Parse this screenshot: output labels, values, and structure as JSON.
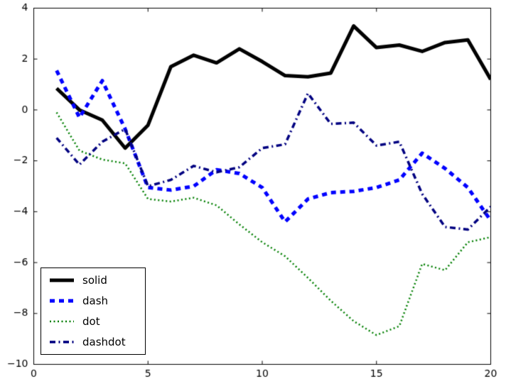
{
  "figure": {
    "background": "#ffffff",
    "frame_color": "#000000"
  },
  "chart_data": {
    "type": "line",
    "title": "",
    "xlabel": "",
    "ylabel": "",
    "grid": false,
    "xlim": [
      0,
      20
    ],
    "ylim": [
      -10,
      4
    ],
    "xticks": [
      0,
      5,
      10,
      15,
      20
    ],
    "yticks": [
      4,
      2,
      0,
      -2,
      -4,
      -6,
      -8,
      -10
    ],
    "xtick_labels": [
      "0",
      "5",
      "10",
      "15",
      "20"
    ],
    "ytick_labels": [
      "4",
      "2",
      "0",
      "−2",
      "−4",
      "−6",
      "−8",
      "−10"
    ],
    "x": [
      1,
      2,
      3,
      4,
      5,
      6,
      7,
      8,
      9,
      10,
      11,
      12,
      13,
      14,
      15,
      16,
      17,
      18,
      19,
      20
    ],
    "series": [
      {
        "name": "solid",
        "color": "#000000",
        "linewidth": 5,
        "dash": [],
        "values": [
          0.85,
          0.0,
          -0.4,
          -1.5,
          -0.6,
          1.7,
          2.15,
          1.85,
          2.4,
          1.9,
          1.35,
          1.3,
          1.45,
          3.3,
          2.45,
          2.55,
          2.3,
          2.65,
          2.75,
          1.2
        ]
      },
      {
        "name": "dash",
        "color": "#0000ff",
        "linewidth": 5,
        "dash": [
          7,
          6
        ],
        "values": [
          1.55,
          -0.3,
          1.15,
          -0.75,
          -3.05,
          -3.15,
          -3.0,
          -2.35,
          -2.5,
          -3.05,
          -4.4,
          -3.5,
          -3.25,
          -3.2,
          -3.05,
          -2.75,
          -1.7,
          -2.3,
          -3.05,
          -4.35
        ]
      },
      {
        "name": "dot",
        "color": "#007f00",
        "linewidth": 2.5,
        "dash": [
          2,
          3.5
        ],
        "values": [
          -0.1,
          -1.6,
          -1.95,
          -2.1,
          -3.5,
          -3.6,
          -3.45,
          -3.75,
          -4.5,
          -5.2,
          -5.75,
          -6.6,
          -7.5,
          -8.3,
          -8.85,
          -8.5,
          -6.05,
          -6.3,
          -5.2,
          -5.0
        ]
      },
      {
        "name": "dashdot",
        "color": "#000080",
        "linewidth": 3.5,
        "dash": [
          8,
          4.5,
          2,
          4.5
        ],
        "values": [
          -1.1,
          -2.15,
          -1.25,
          -0.75,
          -3.0,
          -2.75,
          -2.2,
          -2.45,
          -2.25,
          -1.5,
          -1.35,
          0.65,
          -0.55,
          -0.5,
          -1.4,
          -1.25,
          -3.3,
          -4.6,
          -4.7,
          -3.8
        ]
      }
    ],
    "legend": {
      "position": "lower left",
      "entries": [
        "solid",
        "dash",
        "dot",
        "dashdot"
      ]
    }
  }
}
